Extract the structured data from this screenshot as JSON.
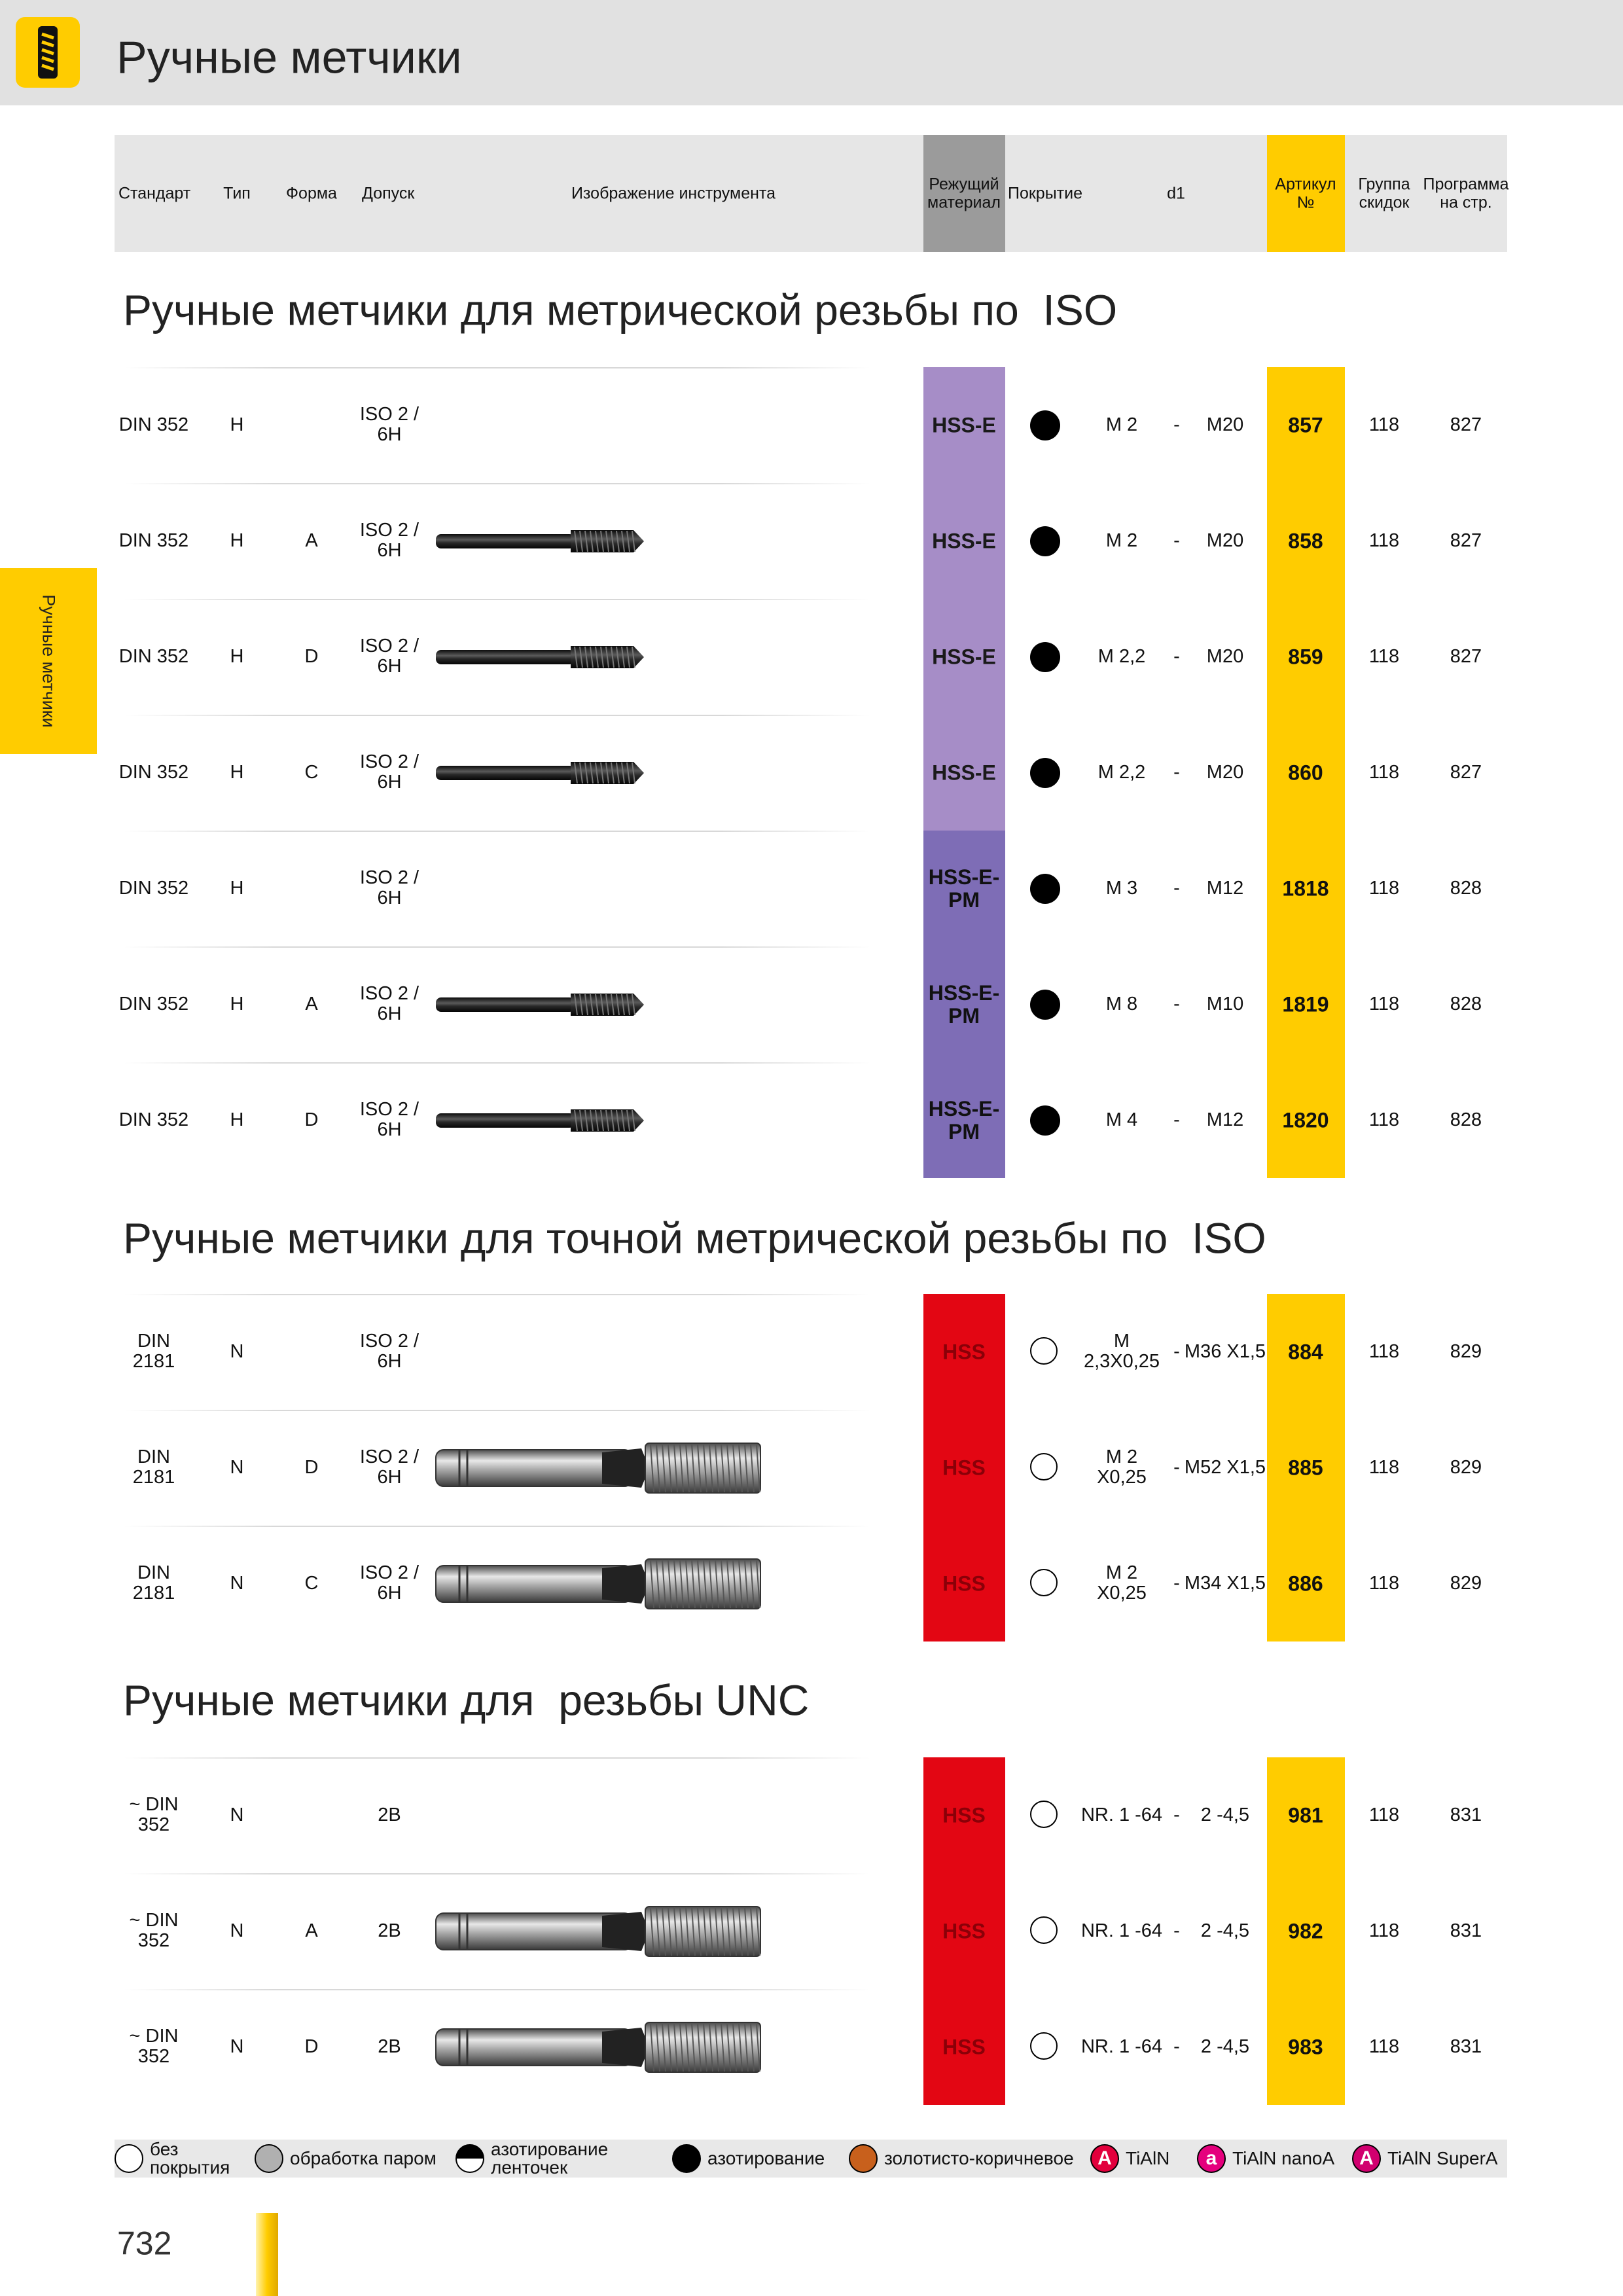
{
  "header": {
    "title": "Ручные метчики"
  },
  "side_tab": "Ручные метчики",
  "columns": [
    "Стандарт",
    "Тип",
    "Форма",
    "Допуск",
    "Изображение инструмента",
    "Режущий\nматериал",
    "Покрытие",
    "d1",
    "Артикул\n№",
    "Группа\nскидок",
    "Программа\nна стр."
  ],
  "material_colors": {
    "HSS-E": {
      "bg": "#a68dc7",
      "text": "#1a1a1a"
    },
    "HSS-E-PM": {
      "bg": "#7e6db6",
      "text": "#111111"
    },
    "HSS": {
      "bg": "#e30613",
      "text": "#8a0008"
    }
  },
  "sections": [
    {
      "title": "Ручные метчики для метрической резьбы по  ISO",
      "tool_style": "dark",
      "rows": [
        {
          "standard": "DIN 352",
          "type": "H",
          "form": null,
          "tolerance": "ISO 2 /\n6H",
          "image": false,
          "material": "HSS-E",
          "coating_filled": true,
          "d1": [
            "M 2",
            "-",
            "M20"
          ],
          "article": "857",
          "group": "118",
          "page": "827"
        },
        {
          "standard": "DIN 352",
          "type": "H",
          "form": "A",
          "tolerance": "ISO 2 /\n6H",
          "image": true,
          "material": "HSS-E",
          "coating_filled": true,
          "d1": [
            "M 2",
            "-",
            "M20"
          ],
          "article": "858",
          "group": "118",
          "page": "827"
        },
        {
          "standard": "DIN 352",
          "type": "H",
          "form": "D",
          "tolerance": "ISO 2 /\n6H",
          "image": true,
          "material": "HSS-E",
          "coating_filled": true,
          "d1": [
            "M 2,2",
            "-",
            "M20"
          ],
          "article": "859",
          "group": "118",
          "page": "827"
        },
        {
          "standard": "DIN 352",
          "type": "H",
          "form": "C",
          "tolerance": "ISO 2 /\n6H",
          "image": true,
          "material": "HSS-E",
          "coating_filled": true,
          "d1": [
            "M 2,2",
            "-",
            "M20"
          ],
          "article": "860",
          "group": "118",
          "page": "827"
        },
        {
          "standard": "DIN 352",
          "type": "H",
          "form": null,
          "tolerance": "ISO 2 /\n6H",
          "image": false,
          "material": "HSS-E-PM",
          "coating_filled": true,
          "d1": [
            "M 3",
            "-",
            "M12"
          ],
          "article": "1818",
          "group": "118",
          "page": "828"
        },
        {
          "standard": "DIN 352",
          "type": "H",
          "form": "A",
          "tolerance": "ISO 2 /\n6H",
          "image": true,
          "material": "HSS-E-PM",
          "coating_filled": true,
          "d1": [
            "M 8",
            "-",
            "M10"
          ],
          "article": "1819",
          "group": "118",
          "page": "828"
        },
        {
          "standard": "DIN 352",
          "type": "H",
          "form": "D",
          "tolerance": "ISO 2 /\n6H",
          "image": true,
          "material": "HSS-E-PM",
          "coating_filled": true,
          "d1": [
            "M 4",
            "-",
            "M12"
          ],
          "article": "1820",
          "group": "118",
          "page": "828"
        }
      ]
    },
    {
      "title": "Ручные метчики для точной метрической резьбы по  ISO",
      "tool_style": "steel",
      "rows": [
        {
          "standard": "DIN\n2181",
          "type": "N",
          "form": null,
          "tolerance": "ISO 2 /\n6H",
          "image": false,
          "material": "HSS",
          "coating_filled": false,
          "d1": [
            "M\n2,3X0,25",
            "-",
            "M36 X1,5"
          ],
          "article": "884",
          "group": "118",
          "page": "829"
        },
        {
          "standard": "DIN\n2181",
          "type": "N",
          "form": "D",
          "tolerance": "ISO 2 /\n6H",
          "image": true,
          "material": "HSS",
          "coating_filled": false,
          "d1": [
            "M 2\nX0,25",
            "-",
            "M52 X1,5"
          ],
          "article": "885",
          "group": "118",
          "page": "829"
        },
        {
          "standard": "DIN\n2181",
          "type": "N",
          "form": "C",
          "tolerance": "ISO 2 /\n6H",
          "image": true,
          "material": "HSS",
          "coating_filled": false,
          "d1": [
            "M 2\nX0,25",
            "-",
            "M34 X1,5"
          ],
          "article": "886",
          "group": "118",
          "page": "829"
        }
      ]
    },
    {
      "title": "Ручные метчики для  резьбы UNC",
      "tool_style": "steel",
      "rows": [
        {
          "standard": "~ DIN\n352",
          "type": "N",
          "form": null,
          "tolerance": "2B",
          "image": false,
          "material": "HSS",
          "coating_filled": false,
          "d1": [
            "NR. 1 -64",
            "-",
            "2 -4,5"
          ],
          "article": "981",
          "group": "118",
          "page": "831"
        },
        {
          "standard": "~ DIN\n352",
          "type": "N",
          "form": "A",
          "tolerance": "2B",
          "image": true,
          "material": "HSS",
          "coating_filled": false,
          "d1": [
            "NR. 1 -64",
            "-",
            "2 -4,5"
          ],
          "article": "982",
          "group": "118",
          "page": "831"
        },
        {
          "standard": "~ DIN\n352",
          "type": "N",
          "form": "D",
          "tolerance": "2B",
          "image": true,
          "material": "HSS",
          "coating_filled": false,
          "d1": [
            "NR. 1 -64",
            "-",
            "2 -4,5"
          ],
          "article": "983",
          "group": "118",
          "page": "831"
        }
      ]
    }
  ],
  "legend": [
    {
      "label": "без\nпокрытия",
      "color": "#ffffff"
    },
    {
      "label": "обработка паром",
      "color": "#b0b0b0"
    },
    {
      "label": "азотирование\nленточек",
      "color": "half"
    },
    {
      "label": "азотирование",
      "color": "#000000"
    },
    {
      "label": "золотисто-коричневое",
      "color": "#c8601c"
    },
    {
      "label": "TiAlN",
      "color": "#e2003c",
      "symbol": "A"
    },
    {
      "label": "TiAlN nanoA",
      "color": "#e5007d",
      "symbol": "a"
    },
    {
      "label": "TiAlN SuperA",
      "color": "#d1006f",
      "symbol": "A"
    }
  ],
  "page_number": "732"
}
